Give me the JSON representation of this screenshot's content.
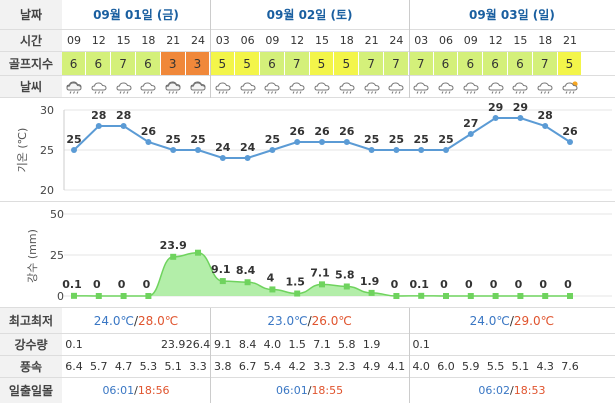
{
  "labels": {
    "date": "날짜",
    "time": "시간",
    "golf_index": "골프지수",
    "weather": "날씨",
    "temp_axis": "기온 (℃)",
    "rain_axis": "강수 (mm)",
    "minmax": "최고최저",
    "rain_amount": "강수량",
    "wind": "풍속",
    "sun": "일출일몰"
  },
  "days": [
    {
      "label": "09월 01일 (금)",
      "min": "24.0℃",
      "max": "28.0℃",
      "sunrise": "06:01",
      "sunset": "18:56"
    },
    {
      "label": "09월 02일 (토)",
      "min": "23.0℃",
      "max": "26.0℃",
      "sunrise": "06:01",
      "sunset": "18:55"
    },
    {
      "label": "09월 03일 (일)",
      "min": "24.0℃",
      "max": "29.0℃",
      "sunrise": "06:02",
      "sunset": "18:53"
    }
  ],
  "slash": "/",
  "times": [
    "09",
    "12",
    "15",
    "18",
    "21",
    "24",
    "03",
    "06",
    "09",
    "12",
    "15",
    "18",
    "21",
    "24",
    "03",
    "06",
    "09",
    "12",
    "15",
    "18",
    "21"
  ],
  "golf_index": [
    "6",
    "6",
    "7",
    "6",
    "3",
    "3",
    "5",
    "5",
    "6",
    "7",
    "5",
    "5",
    "7",
    "7",
    "7",
    "6",
    "6",
    "6",
    "6",
    "7",
    "5"
  ],
  "weather_icons": [
    "heavy-cloud-rain-icon",
    "cloud-rain-icon",
    "cloud-rain-icon",
    "cloud-rain-icon",
    "heavy-cloud-rain-icon",
    "heavy-cloud-rain-icon",
    "cloud-rain-icon",
    "cloud-rain-icon",
    "cloud-rain-icon",
    "cloud-rain-icon",
    "cloud-rain-icon",
    "cloud-rain-icon",
    "cloud-rain-icon",
    "cloud-rain-icon",
    "cloud-rain-icon",
    "cloud-rain-icon",
    "cloud-rain-icon",
    "cloud-rain-icon",
    "cloud-rain-icon",
    "cloud-rain-icon",
    "sun-cloud-rain-icon"
  ],
  "rain_amount": [
    "0.1",
    "",
    "",
    "",
    "23.9",
    "26.4",
    "9.1",
    "8.4",
    "4.0",
    "1.5",
    "7.1",
    "5.8",
    "1.9",
    "",
    "0.1",
    "",
    "",
    "",
    "",
    "",
    ""
  ],
  "wind": [
    "6.4",
    "5.7",
    "4.7",
    "5.3",
    "5.1",
    "3.3",
    "3.8",
    "6.7",
    "5.4",
    "4.2",
    "3.3",
    "2.3",
    "4.9",
    "4.1",
    "4.0",
    "6.0",
    "5.9",
    "5.5",
    "5.1",
    "4.3",
    "7.6"
  ],
  "colors": {
    "golf_3": "#f0883a",
    "golf_5": "#f3f54a",
    "golf_6": "#d4f07a",
    "golf_7": "#d4f07a",
    "temp_line": "#5b9bd5",
    "rain_fill": "#a6eb9a",
    "rain_line": "#6fd35e",
    "max_color": "#e0542e",
    "min_color": "#3a77c4"
  },
  "chart_data": [
    {
      "type": "line",
      "x": [
        "09",
        "12",
        "15",
        "18",
        "21",
        "24",
        "03",
        "06",
        "09",
        "12",
        "15",
        "18",
        "21",
        "24",
        "03",
        "06",
        "09",
        "12",
        "15",
        "18",
        "21"
      ],
      "series": [
        {
          "values": [
            25,
            28,
            28,
            26,
            25,
            25,
            24,
            24,
            25,
            26,
            26,
            26,
            25,
            25,
            25,
            25,
            27,
            29,
            29,
            28,
            26
          ]
        }
      ],
      "ylabel": "기온 (℃)",
      "ylim": [
        20,
        30
      ],
      "yticks": [
        20,
        25,
        30
      ],
      "grid": true
    },
    {
      "type": "area",
      "x": [
        "09",
        "12",
        "15",
        "18",
        "21",
        "24",
        "03",
        "06",
        "09",
        "12",
        "15",
        "18",
        "21",
        "24",
        "03",
        "06",
        "09",
        "12",
        "15",
        "18",
        "21"
      ],
      "series": [
        {
          "values": [
            0.1,
            0,
            0,
            0,
            23.9,
            26.4,
            9.1,
            8.4,
            4,
            1.5,
            7.1,
            5.8,
            1.9,
            0,
            0.1,
            0,
            0,
            0,
            0,
            0,
            0
          ]
        }
      ],
      "labels": [
        "0.1",
        "0",
        "0",
        "0",
        "23.9",
        "",
        "9.1",
        "8.4",
        "4",
        "1.5",
        "7.1",
        "5.8",
        "1.9",
        "0",
        "0.1",
        "0",
        "0",
        "0",
        "0",
        "0",
        "0"
      ],
      "ylabel": "강수 (mm)",
      "ylim": [
        0,
        50
      ],
      "yticks": [
        0,
        25,
        50
      ],
      "grid": true
    }
  ]
}
